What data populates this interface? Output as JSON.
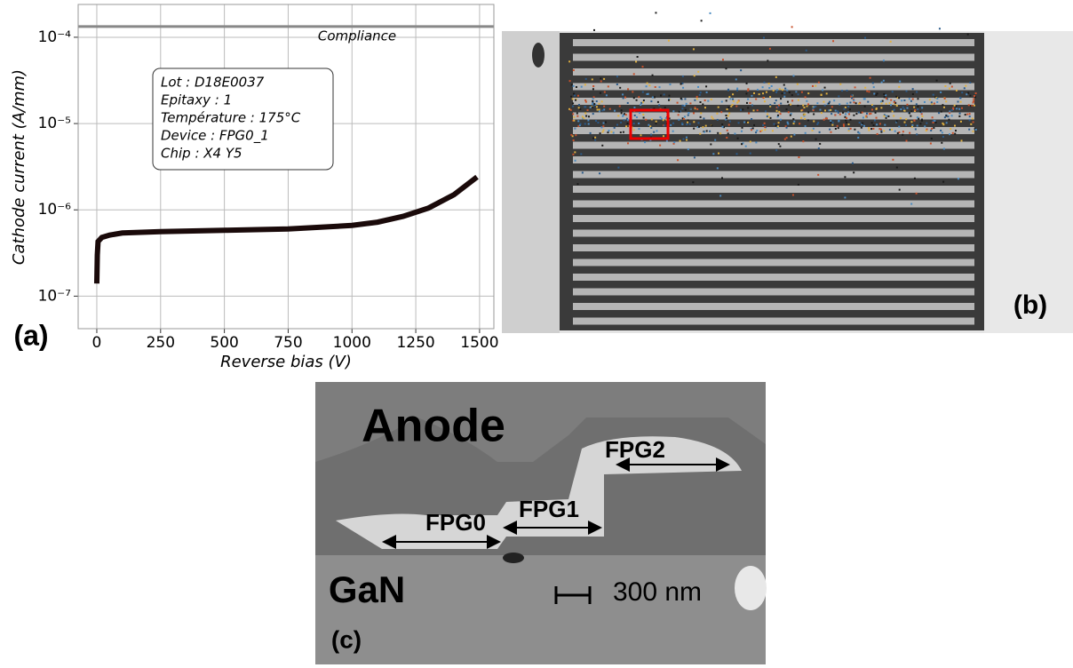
{
  "chart_data": {
    "type": "line",
    "panel_label": "(a)",
    "x_label": "Reverse bias (V)",
    "y_label": "Cathode current (A/mm)",
    "log_y": true,
    "grid": true,
    "x": [
      0,
      2,
      5,
      20,
      50,
      100,
      250,
      500,
      750,
      1000,
      1100,
      1200,
      1300,
      1400,
      1490
    ],
    "series": [
      {
        "color": "#1a0a0a",
        "values": [
          1.4e-07,
          3e-07,
          4.3e-07,
          4.8e-07,
          5.1e-07,
          5.4e-07,
          5.6e-07,
          5.8e-07,
          6e-07,
          6.6e-07,
          7.2e-07,
          8.4e-07,
          1.05e-06,
          1.5e-06,
          2.4e-06
        ]
      }
    ],
    "xlim": [
      -73,
      1556
    ],
    "ylim": [
      4.2e-08,
      0.00024
    ],
    "xticks": [
      0,
      250,
      500,
      750,
      1000,
      1250,
      1500
    ],
    "yticks": [
      {
        "value": 1e-07,
        "label": "10⁻⁷"
      },
      {
        "value": 1e-06,
        "label": "10⁻⁶"
      },
      {
        "value": 1e-05,
        "label": "10⁻⁵"
      },
      {
        "value": 0.0001,
        "label": "10⁻⁴"
      }
    ],
    "compliance": {
      "value": 0.000133,
      "label": "Compliance"
    },
    "info_box": [
      "Lot : D18E0037",
      "Epitaxy : 1",
      "Température : 175°C",
      "Device : FPG0_1",
      "Chip : X4 Y5"
    ]
  },
  "panel_b": {
    "label": "(b)"
  },
  "panel_c": {
    "label": "(c)",
    "anode": "Anode",
    "gan": "GaN",
    "fpg0": "FPG0",
    "fpg1": "FPG1",
    "fpg2": "FPG2",
    "scale": "300 nm"
  }
}
